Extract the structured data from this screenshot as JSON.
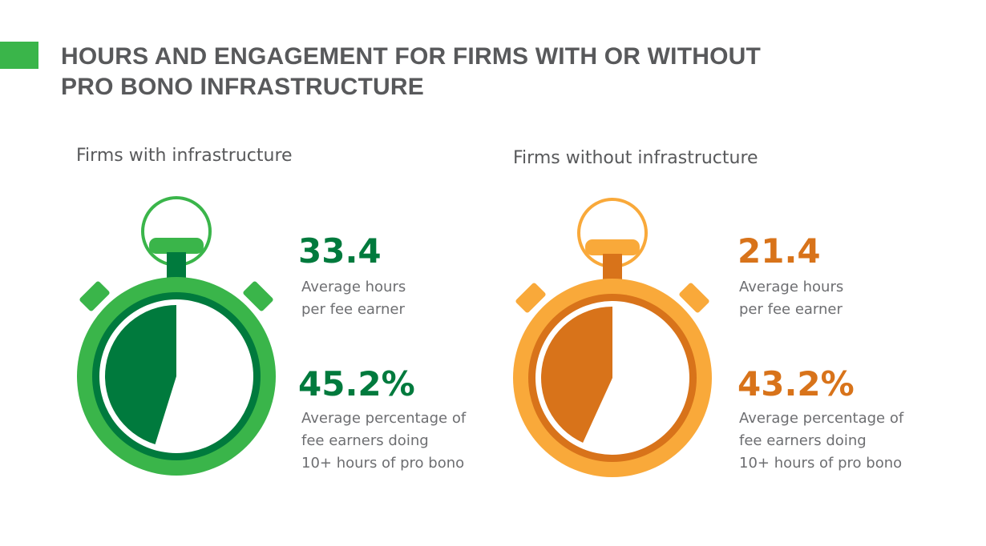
{
  "title_lines": [
    "HOURS AND ENGAGEMENT FOR FIRMS WITH OR WITHOUT",
    "PRO BONO INFRASTRUCTURE"
  ],
  "colors": {
    "title": "#58595b",
    "accent_bar": "#3ab54a",
    "with_outer": "#3ab54a",
    "with_dark": "#007a3d",
    "without_outer": "#f9a93a",
    "without_dark": "#d8731a"
  },
  "chart_data": [
    {
      "type": "pie",
      "title": "Firms with infrastructure",
      "icon": "stopwatch-icon",
      "hours": {
        "value": "33.4",
        "label_lines": [
          "Average hours",
          "per fee earner"
        ]
      },
      "percentage": {
        "value": "45.2%",
        "fraction": 0.452,
        "label_lines": [
          "Average percentage of",
          "fee earners doing",
          "10+ hours of pro bono"
        ]
      }
    },
    {
      "type": "pie",
      "title": "Firms without infrastructure",
      "icon": "stopwatch-icon",
      "hours": {
        "value": "21.4",
        "label_lines": [
          "Average hours",
          "per fee earner"
        ]
      },
      "percentage": {
        "value": "43.2%",
        "fraction": 0.432,
        "label_lines": [
          "Average percentage of",
          "fee earners doing",
          "10+ hours of pro bono"
        ]
      }
    }
  ]
}
